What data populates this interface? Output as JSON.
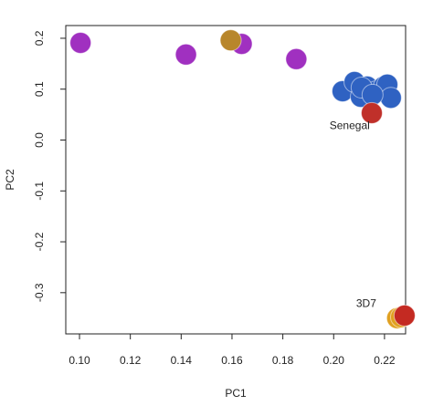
{
  "chart_data": {
    "type": "scatter",
    "xlabel": "PC1",
    "ylabel": "PC2",
    "xlim": [
      0.0946,
      0.2283
    ],
    "ylim": [
      -0.381,
      0.225
    ],
    "xticks": [
      {
        "value": 0.1,
        "label": "0.10"
      },
      {
        "value": 0.12,
        "label": "0.12"
      },
      {
        "value": 0.14,
        "label": "0.14"
      },
      {
        "value": 0.16,
        "label": "0.16"
      },
      {
        "value": 0.18,
        "label": "0.18"
      },
      {
        "value": 0.2,
        "label": "0.20"
      },
      {
        "value": 0.22,
        "label": "0.22"
      }
    ],
    "yticks": [
      -0.3,
      -0.2,
      -0.1,
      {
        "value": 0,
        "label": "0.0"
      },
      0.1,
      0.2
    ],
    "annotations": [
      {
        "text": "Senegal",
        "x": 0.2063,
        "y": 0.027
      },
      {
        "text": "3D7",
        "x": 0.2128,
        "y": -0.322
      }
    ],
    "series": [
      {
        "color": "#a030c0",
        "x": [
          0.1004,
          0.1419,
          0.1638,
          0.1853
        ],
        "y": [
          0.191,
          0.168,
          0.189,
          0.159
        ]
      },
      {
        "color": "#b8862b",
        "x": [
          0.1595
        ],
        "y": [
          0.196
        ]
      },
      {
        "color": "#2f62c2",
        "x": [
          0.2035,
          0.2082,
          0.2107,
          0.2132,
          0.2168,
          0.2197,
          0.2211,
          0.2225,
          0.211,
          0.2153
        ],
        "y": [
          0.096,
          0.114,
          0.085,
          0.105,
          0.096,
          0.105,
          0.109,
          0.083,
          0.103,
          0.089
        ]
      },
      {
        "color": "#c0302a",
        "x": [
          0.215
        ],
        "y": [
          0.053
        ]
      },
      {
        "color": "#e0a020",
        "x": [
          0.225,
          0.2265
        ],
        "y": [
          -0.35,
          -0.348
        ]
      },
      {
        "color": "#c42a22",
        "x": [
          0.2279
        ],
        "y": [
          -0.345
        ]
      }
    ]
  }
}
